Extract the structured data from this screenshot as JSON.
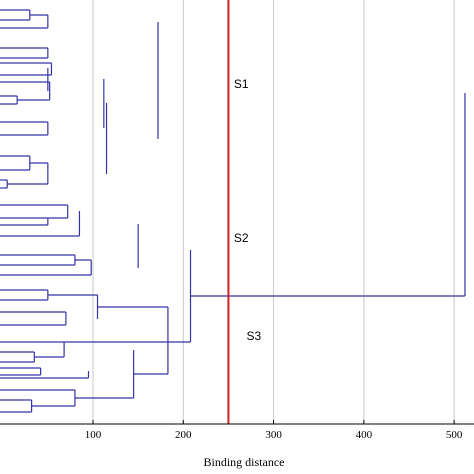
{
  "chart_data": {
    "type": "dendrogram",
    "orientation": "horizontal",
    "xlabel": "Binding distance",
    "xlim": [
      -3,
      522
    ],
    "xticks": [
      100,
      200,
      300,
      400,
      500
    ],
    "grid": true,
    "cut_line": {
      "x": 250,
      "color": "#cc2222"
    },
    "line_color": "#3333aa",
    "cluster_labels": [
      {
        "text": "S1",
        "x": 256,
        "y": 84
      },
      {
        "text": "S2",
        "x": 256,
        "y": 238
      },
      {
        "text": "S3",
        "x": 270,
        "y": 336
      }
    ],
    "merges": [
      {
        "x": 30,
        "y1": 10,
        "y2": 20
      },
      {
        "x": 50,
        "y1": 15,
        "y2": 28
      },
      {
        "x": 50,
        "y1": 48,
        "y2": 58
      },
      {
        "x": 54,
        "y1": 63,
        "y2": 75
      },
      {
        "x": 16,
        "y1": 96,
        "y2": 104
      },
      {
        "x": 52,
        "y1": 82,
        "y2": 100
      },
      {
        "x": 50,
        "y1": 68,
        "y2": 91
      },
      {
        "x": 50,
        "y1": 122,
        "y2": 135
      },
      {
        "x": 112,
        "y1": 79,
        "y2": 128
      },
      {
        "x": 30,
        "y1": 156,
        "y2": 170
      },
      {
        "x": 5,
        "y1": 180,
        "y2": 188
      },
      {
        "x": 50,
        "y1": 163,
        "y2": 184
      },
      {
        "x": 115,
        "y1": 103,
        "y2": 174
      },
      {
        "x": 172,
        "y1": 22,
        "y2": 139
      },
      {
        "x": 72,
        "y1": 205,
        "y2": 218
      },
      {
        "x": 50,
        "y1": 218,
        "y2": 225
      },
      {
        "x": 85,
        "y1": 211,
        "y2": 236
      },
      {
        "x": 80,
        "y1": 255,
        "y2": 265
      },
      {
        "x": 98,
        "y1": 260,
        "y2": 275
      },
      {
        "x": 150,
        "y1": 224,
        "y2": 268
      },
      {
        "x": 50,
        "y1": 290,
        "y2": 300
      },
      {
        "x": 70,
        "y1": 312,
        "y2": 325
      },
      {
        "x": 105,
        "y1": 295,
        "y2": 319
      },
      {
        "x": 35,
        "y1": 352,
        "y2": 362
      },
      {
        "x": 42,
        "y1": 368,
        "y2": 375
      },
      {
        "x": 68,
        "y1": 342,
        "y2": 357
      },
      {
        "x": 95,
        "y1": 371,
        "y2": 378
      },
      {
        "x": 32,
        "y1": 400,
        "y2": 412
      },
      {
        "x": 80,
        "y1": 390,
        "y2": 406
      },
      {
        "x": 145,
        "y1": 350,
        "y2": 398
      },
      {
        "x": 183,
        "y1": 307,
        "y2": 374
      },
      {
        "x": 208,
        "y1": 250,
        "y2": 342
      },
      {
        "x": 512,
        "y1": 93,
        "y2": 296
      }
    ],
    "leaves": [
      {
        "y": 10,
        "x2": 30
      },
      {
        "y": 20,
        "x2": 30
      },
      {
        "y": 28,
        "x2": 50
      },
      {
        "y": 48,
        "x2": 50
      },
      {
        "y": 58,
        "x2": 50
      },
      {
        "y": 63,
        "x2": 54
      },
      {
        "y": 75,
        "x2": 54
      },
      {
        "y": 82,
        "x2": 52
      },
      {
        "y": 96,
        "x2": 16
      },
      {
        "y": 104,
        "x2": 16
      },
      {
        "y": 122,
        "x2": 50
      },
      {
        "y": 135,
        "x2": 50
      },
      {
        "y": 156,
        "x2": 30
      },
      {
        "y": 170,
        "x2": 30
      },
      {
        "y": 180,
        "x2": 5
      },
      {
        "y": 188,
        "x2": 5
      },
      {
        "y": 205,
        "x2": 72
      },
      {
        "y": 218,
        "x2": 50
      },
      {
        "y": 225,
        "x2": 50
      },
      {
        "y": 236,
        "x2": 85
      },
      {
        "y": 255,
        "x2": 80
      },
      {
        "y": 265,
        "x2": 80
      },
      {
        "y": 275,
        "x2": 98
      },
      {
        "y": 290,
        "x2": 50
      },
      {
        "y": 300,
        "x2": 50
      },
      {
        "y": 312,
        "x2": 70
      },
      {
        "y": 325,
        "x2": 70
      },
      {
        "y": 342,
        "x2": 68
      },
      {
        "y": 352,
        "x2": 35
      },
      {
        "y": 362,
        "x2": 35
      },
      {
        "y": 368,
        "x2": 42
      },
      {
        "y": 375,
        "x2": 42
      },
      {
        "y": 378,
        "x2": 95
      },
      {
        "y": 390,
        "x2": 80
      },
      {
        "y": 400,
        "x2": 32
      },
      {
        "y": 412,
        "x2": 32
      }
    ]
  }
}
